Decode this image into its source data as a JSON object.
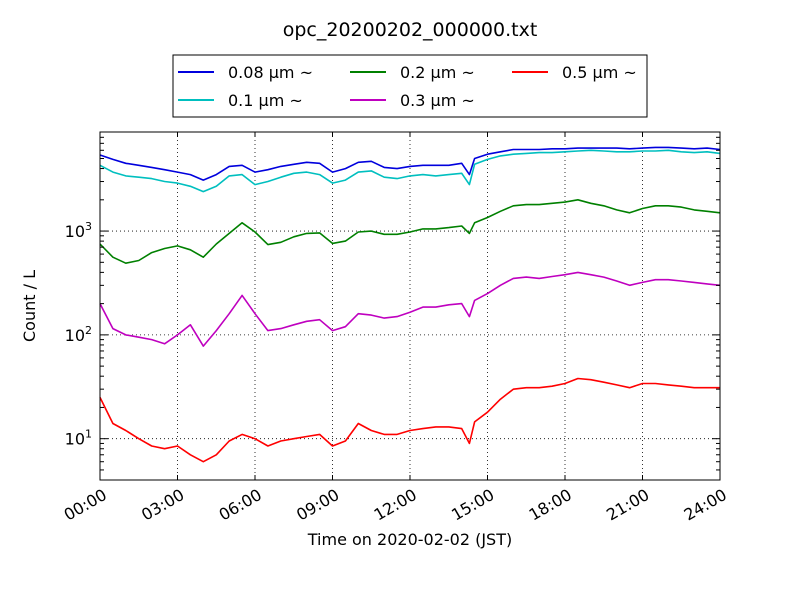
{
  "chart_data": {
    "type": "line",
    "title": "opc_20200202_000000.txt",
    "xlabel": "Time on 2020-02-02 (JST)",
    "ylabel": "Count / L",
    "x_unit": "hours",
    "xlim": [
      0,
      24
    ],
    "ylim": [
      4,
      9000
    ],
    "yscale": "log",
    "grid": true,
    "legend_position": "top-center",
    "x_ticks": [
      {
        "value": 0,
        "label": "00:00"
      },
      {
        "value": 3,
        "label": "03:00"
      },
      {
        "value": 6,
        "label": "06:00"
      },
      {
        "value": 9,
        "label": "09:00"
      },
      {
        "value": 12,
        "label": "12:00"
      },
      {
        "value": 15,
        "label": "15:00"
      },
      {
        "value": 18,
        "label": "18:00"
      },
      {
        "value": 21,
        "label": "21:00"
      },
      {
        "value": 24,
        "label": "24:00"
      }
    ],
    "y_ticks": [
      {
        "value": 10,
        "base": "10",
        "exp": "1"
      },
      {
        "value": 100,
        "base": "10",
        "exp": "2"
      },
      {
        "value": 1000,
        "base": "10",
        "exp": "3"
      }
    ],
    "x": [
      0,
      0.5,
      1,
      1.5,
      2,
      2.5,
      3,
      3.5,
      4,
      4.5,
      5,
      5.5,
      6,
      6.5,
      7,
      7.5,
      8,
      8.5,
      9,
      9.5,
      10,
      10.5,
      11,
      11.5,
      12,
      12.5,
      13,
      13.5,
      14,
      14.3,
      14.5,
      15,
      15.5,
      16,
      16.5,
      17,
      17.5,
      18,
      18.5,
      19,
      19.5,
      20,
      20.5,
      21,
      21.5,
      22,
      22.5,
      23,
      23.5,
      24
    ],
    "series": [
      {
        "name": "0.08 μm ~",
        "color": "#0000dd",
        "values": [
          5400,
          4900,
          4500,
          4300,
          4100,
          3900,
          3700,
          3500,
          3100,
          3500,
          4200,
          4300,
          3700,
          3900,
          4200,
          4400,
          4600,
          4500,
          3700,
          4000,
          4600,
          4700,
          4100,
          4000,
          4200,
          4300,
          4300,
          4300,
          4500,
          3500,
          5000,
          5500,
          5800,
          6100,
          6100,
          6100,
          6200,
          6200,
          6300,
          6300,
          6300,
          6300,
          6200,
          6300,
          6400,
          6400,
          6300,
          6200,
          6300,
          6100
        ]
      },
      {
        "name": "0.1 μm ~",
        "color": "#00bfbf",
        "values": [
          4300,
          3700,
          3400,
          3300,
          3200,
          3000,
          2900,
          2700,
          2400,
          2700,
          3400,
          3500,
          2800,
          3000,
          3300,
          3600,
          3700,
          3500,
          2900,
          3100,
          3700,
          3800,
          3300,
          3200,
          3400,
          3500,
          3400,
          3500,
          3600,
          2800,
          4400,
          4900,
          5300,
          5500,
          5600,
          5700,
          5700,
          5800,
          5900,
          6000,
          5900,
          5800,
          5800,
          5900,
          5900,
          6000,
          5800,
          5700,
          5800,
          5600
        ]
      },
      {
        "name": "0.2 μm ~",
        "color": "#008000",
        "values": [
          750,
          560,
          490,
          520,
          620,
          680,
          720,
          660,
          560,
          750,
          950,
          1200,
          980,
          740,
          780,
          880,
          950,
          960,
          760,
          800,
          980,
          1000,
          930,
          930,
          980,
          1050,
          1050,
          1080,
          1120,
          950,
          1200,
          1350,
          1550,
          1750,
          1800,
          1800,
          1850,
          1900,
          2000,
          1850,
          1750,
          1600,
          1500,
          1650,
          1750,
          1750,
          1700,
          1600,
          1550,
          1500
        ]
      },
      {
        "name": "0.3 μm ~",
        "color": "#bf00bf",
        "values": [
          200,
          115,
          100,
          95,
          90,
          82,
          100,
          125,
          78,
          110,
          160,
          240,
          160,
          110,
          115,
          125,
          135,
          140,
          110,
          120,
          160,
          155,
          145,
          150,
          165,
          185,
          185,
          195,
          200,
          150,
          215,
          250,
          300,
          350,
          360,
          350,
          365,
          380,
          400,
          380,
          360,
          330,
          300,
          320,
          340,
          340,
          330,
          320,
          310,
          300
        ]
      },
      {
        "name": "0.5 μm ~",
        "color": "#ff0000",
        "values": [
          25,
          14,
          12,
          10,
          8.5,
          8,
          8.5,
          7,
          6,
          7,
          9.5,
          11,
          10,
          8.5,
          9.5,
          10,
          10.5,
          11,
          8.5,
          9.5,
          14,
          12,
          11,
          11,
          12,
          12.5,
          13,
          13,
          12.5,
          9,
          14.5,
          18,
          24,
          30,
          31,
          31,
          32,
          34,
          38,
          37,
          35,
          33,
          31,
          34,
          34,
          33,
          32,
          31,
          31,
          31
        ]
      }
    ]
  }
}
